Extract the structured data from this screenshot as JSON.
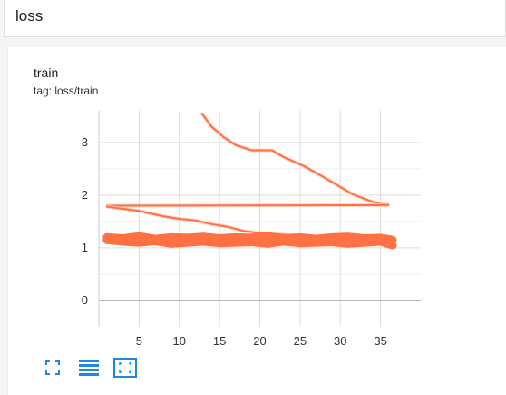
{
  "section": {
    "title": "loss"
  },
  "card": {
    "title": "train",
    "tag": "tag: loss/train"
  },
  "colors": {
    "accent": "#ff7043",
    "smoothed_faint": "#ffccbc",
    "grid": "#dddddd",
    "axis": "#9e9e9e",
    "icon": "#1e88e5"
  },
  "toolbar": {
    "icons": [
      "expand-icon",
      "data-table-icon",
      "fit-domain-icon"
    ]
  },
  "chart_data": {
    "type": "line",
    "title": "",
    "xlabel": "",
    "ylabel": "",
    "xlim": [
      0,
      40
    ],
    "ylim": [
      -0.5,
      3.6
    ],
    "xticks": [
      5,
      10,
      15,
      20,
      25,
      30,
      35
    ],
    "yticks": [
      0,
      1,
      2,
      3
    ],
    "grid": true,
    "series": [
      {
        "x": [
          12.8,
          14,
          15.5,
          17,
          19,
          21.5,
          23,
          25.5,
          27.5,
          29.5,
          31.5,
          33.5,
          35,
          36
        ],
        "y": [
          3.55,
          3.3,
          3.1,
          2.95,
          2.85,
          2.85,
          2.72,
          2.55,
          2.38,
          2.2,
          2.02,
          1.9,
          1.83,
          1.82
        ]
      },
      {
        "x": [
          1,
          36
        ],
        "y": [
          1.8,
          1.81
        ]
      },
      {
        "x": [
          1,
          5,
          8,
          10,
          12,
          14,
          16,
          18,
          20,
          22,
          24,
          26,
          28,
          30,
          32,
          34,
          36
        ],
        "y": [
          1.78,
          1.7,
          1.6,
          1.55,
          1.52,
          1.45,
          1.4,
          1.32,
          1.28,
          1.26,
          1.24,
          1.22,
          1.22,
          1.2,
          1.18,
          1.15,
          1.1
        ]
      },
      {
        "x": [
          1,
          3,
          5,
          7,
          9,
          11,
          13,
          15,
          17,
          19,
          21,
          23,
          25,
          27,
          29,
          31,
          33,
          35,
          36.5
        ],
        "y": [
          1.15,
          1.12,
          1.1,
          1.13,
          1.08,
          1.1,
          1.12,
          1.09,
          1.1,
          1.11,
          1.08,
          1.12,
          1.09,
          1.1,
          1.11,
          1.08,
          1.1,
          1.12,
          1.05
        ]
      },
      {
        "x": [
          1,
          3,
          5,
          7,
          9,
          11,
          13,
          15,
          17,
          19,
          21,
          23,
          25,
          27,
          29,
          31,
          33,
          35,
          36.5
        ],
        "y": [
          1.2,
          1.18,
          1.22,
          1.17,
          1.2,
          1.19,
          1.21,
          1.18,
          1.2,
          1.19,
          1.22,
          1.18,
          1.2,
          1.17,
          1.2,
          1.21,
          1.18,
          1.19,
          1.15
        ]
      }
    ]
  }
}
